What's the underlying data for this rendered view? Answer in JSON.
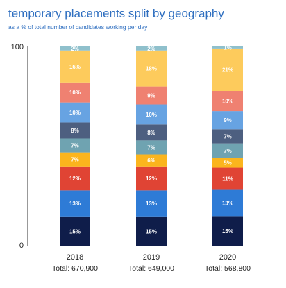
{
  "chart_data": {
    "type": "bar",
    "stacked": true,
    "title": "temporary placements split by geography",
    "subtitle": "as a % of total number of candidates working per day",
    "categories": [
      "2018",
      "2019",
      "2020"
    ],
    "totals": [
      "Total: 670,900",
      "Total: 649,000",
      "Total: 568,800"
    ],
    "ylim": [
      0,
      100
    ],
    "yticks": [
      "0",
      "100"
    ],
    "grid": false,
    "legend": "none",
    "series": [
      {
        "color": "#0f1d4a",
        "text_color": "#ffffff",
        "values": [
          15,
          15,
          15
        ],
        "labels": [
          "15%",
          "15%",
          "15%"
        ]
      },
      {
        "color": "#2e7bd6",
        "text_color": "#ffffff",
        "values": [
          13,
          13,
          13
        ],
        "labels": [
          "13%",
          "13%",
          "13%"
        ]
      },
      {
        "color": "#e04434",
        "text_color": "#ffffff",
        "values": [
          12,
          12,
          11
        ],
        "labels": [
          "12%",
          "12%",
          "11%"
        ]
      },
      {
        "color": "#fbb51d",
        "text_color": "#ffffff",
        "values": [
          7,
          6,
          5
        ],
        "labels": [
          "7%",
          "6%",
          "5%"
        ]
      },
      {
        "color": "#6fa3b1",
        "text_color": "#ffffff",
        "values": [
          7,
          7,
          7
        ],
        "labels": [
          "7%",
          "7%",
          "7%"
        ]
      },
      {
        "color": "#4d5f80",
        "text_color": "#ffffff",
        "values": [
          8,
          8,
          7
        ],
        "labels": [
          "8%",
          "8%",
          "7%"
        ]
      },
      {
        "color": "#67a3e2",
        "text_color": "#ffffff",
        "values": [
          10,
          10,
          9
        ],
        "labels": [
          "10%",
          "10%",
          "9%"
        ]
      },
      {
        "color": "#ef8171",
        "text_color": "#ffffff",
        "values": [
          10,
          9,
          10
        ],
        "labels": [
          "10%",
          "9%",
          "10%"
        ]
      },
      {
        "color": "#fdcb5c",
        "text_color": "#ffffff",
        "values": [
          16,
          18,
          21
        ],
        "labels": [
          "16%",
          "18%",
          "21%"
        ]
      },
      {
        "color": "#8fc0cc",
        "text_color": "#ffffff",
        "values": [
          2,
          2,
          1
        ],
        "labels": [
          "2%",
          "2%",
          "1%"
        ]
      }
    ]
  }
}
